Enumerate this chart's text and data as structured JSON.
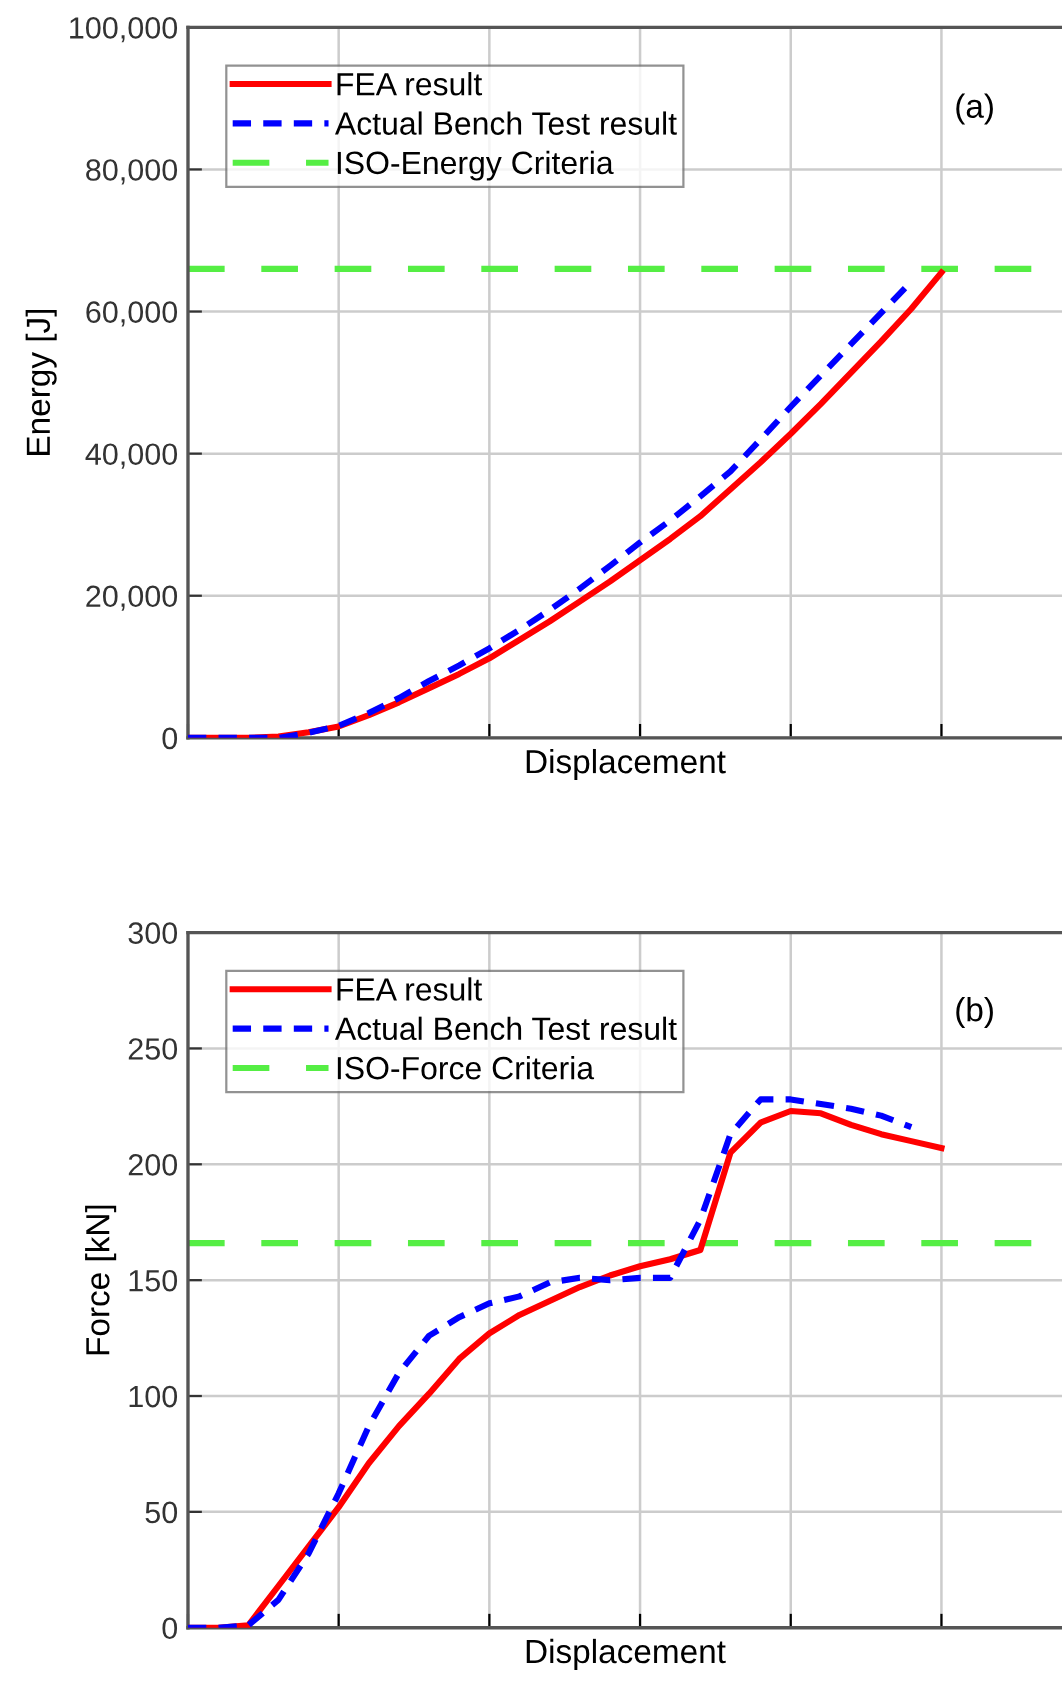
{
  "chart_data": [
    {
      "type": "line",
      "xlabel": "Displacement",
      "ylabel": "Energy [J]",
      "annotations": [
        "(a)"
      ],
      "categories": [
        null,
        null,
        null,
        null,
        null,
        null,
        null,
        null,
        null,
        null,
        null,
        null,
        null,
        null,
        null,
        null,
        null,
        null,
        null,
        null,
        null,
        null,
        null,
        null,
        null,
        null,
        null,
        null,
        null,
        null
      ],
      "series": [
        {
          "name": "FEA result",
          "color": "#ff0000",
          "line_style": "solid",
          "values": [
            0,
            0,
            0,
            200,
            800,
            1600,
            3200,
            5000,
            7000,
            9000,
            11200,
            13800,
            16400,
            19200,
            22000,
            25000,
            28000,
            31200,
            35000,
            38800,
            42800,
            47000,
            51400,
            55800,
            60400,
            65500,
            null,
            null,
            null,
            null
          ]
        },
        {
          "name": "Actual Bench Test result",
          "color": "#0000ff",
          "line_style": "dashed",
          "values": [
            0,
            0,
            0,
            0,
            700,
            1700,
            3500,
            5600,
            8000,
            10200,
            12600,
            15200,
            18000,
            21000,
            24200,
            27500,
            30600,
            34000,
            37500,
            42000,
            46600,
            51000,
            55400,
            59800,
            64200,
            null,
            null,
            null,
            null,
            null
          ]
        }
      ],
      "ref_lines": [
        {
          "axis": "y",
          "value": 66000,
          "label": "ISO-Energy Criteria",
          "color": "#55ee44",
          "line_style": "dashed"
        }
      ],
      "ylim": [
        0,
        100000
      ],
      "yticks": [
        {
          "value": 0,
          "label": "0"
        },
        {
          "value": 20000,
          "label": "20,000"
        },
        {
          "value": 40000,
          "label": "40,000"
        },
        {
          "value": 60000,
          "label": "60,000"
        },
        {
          "value": 80000,
          "label": "80,000"
        },
        {
          "value": 100000,
          "label": "100,000"
        }
      ],
      "grid": true,
      "legend": "top left",
      "tick_labels": "y"
    },
    {
      "type": "line",
      "xlabel": "Displacement",
      "ylabel": "Force [kN]",
      "annotations": [
        "(b)"
      ],
      "categories": [
        null,
        null,
        null,
        null,
        null,
        null,
        null,
        null,
        null,
        null,
        null,
        null,
        null,
        null,
        null,
        null,
        null,
        null,
        null,
        null,
        null,
        null,
        null,
        null,
        null,
        null,
        null,
        null,
        null,
        null
      ],
      "series": [
        {
          "name": "FEA result",
          "color": "#ff0000",
          "line_style": "solid",
          "values": [
            0,
            0,
            1,
            18,
            35,
            52,
            71,
            87,
            101,
            116,
            127,
            135,
            141,
            147,
            152,
            156,
            159,
            163,
            205,
            218,
            223,
            222,
            217,
            213,
            210,
            207,
            null,
            null,
            null,
            null
          ]
        },
        {
          "name": "Actual Bench Test result",
          "color": "#0000ff",
          "line_style": "dashed",
          "values": [
            0,
            0,
            1,
            12,
            32,
            58,
            87,
            110,
            126,
            134,
            140,
            143,
            149,
            151,
            150,
            151,
            151,
            176,
            213,
            228,
            228,
            226,
            224,
            221,
            216,
            null,
            null,
            null,
            null,
            null
          ]
        }
      ],
      "ref_lines": [
        {
          "axis": "y",
          "value": 166,
          "label": "ISO-Force Criteria",
          "color": "#55ee44",
          "line_style": "dashed"
        }
      ],
      "ylim": [
        0,
        300
      ],
      "yticks": [
        0,
        50,
        100,
        150,
        200,
        250,
        300
      ],
      "grid": true,
      "legend": "top left",
      "tick_labels": "y"
    }
  ]
}
